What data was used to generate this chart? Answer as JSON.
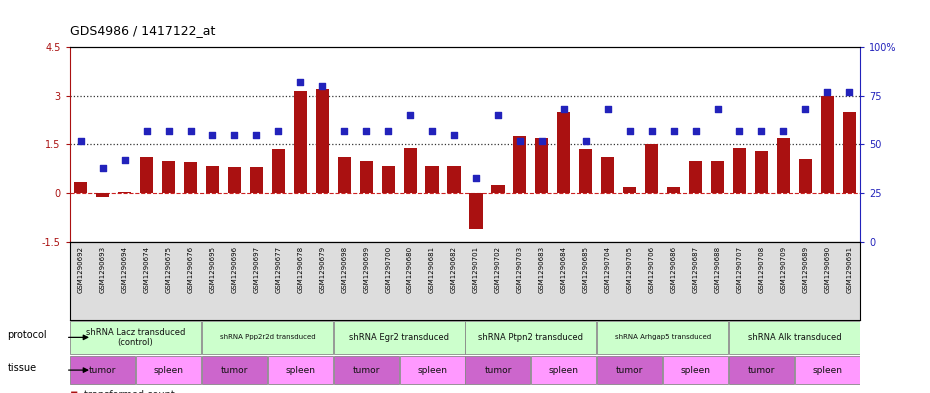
{
  "title": "GDS4986 / 1417122_at",
  "samples": [
    "GSM1290692",
    "GSM1290693",
    "GSM1290694",
    "GSM1290674",
    "GSM1290675",
    "GSM1290676",
    "GSM1290695",
    "GSM1290696",
    "GSM1290697",
    "GSM1290677",
    "GSM1290678",
    "GSM1290679",
    "GSM1290698",
    "GSM1290699",
    "GSM1290700",
    "GSM1290680",
    "GSM1290681",
    "GSM1290682",
    "GSM1290701",
    "GSM1290702",
    "GSM1290703",
    "GSM1290683",
    "GSM1290684",
    "GSM1290685",
    "GSM1290704",
    "GSM1290705",
    "GSM1290706",
    "GSM1290686",
    "GSM1290687",
    "GSM1290688",
    "GSM1290707",
    "GSM1290708",
    "GSM1290709",
    "GSM1290689",
    "GSM1290690",
    "GSM1290691"
  ],
  "bar_values": [
    0.35,
    -0.12,
    0.05,
    1.1,
    1.0,
    0.95,
    0.85,
    0.8,
    0.8,
    1.35,
    3.15,
    3.2,
    1.1,
    1.0,
    0.85,
    1.4,
    0.85,
    0.85,
    -1.1,
    0.25,
    1.75,
    1.7,
    2.5,
    1.35,
    1.1,
    0.2,
    1.5,
    0.2,
    1.0,
    1.0,
    1.4,
    1.3,
    1.7,
    1.05,
    3.0,
    2.5
  ],
  "scatter_pct": [
    52,
    38,
    42,
    57,
    57,
    57,
    55,
    55,
    55,
    57,
    82,
    80,
    57,
    57,
    57,
    65,
    57,
    55,
    33,
    65,
    52,
    52,
    68,
    52,
    68,
    57,
    57,
    57,
    57,
    68,
    57,
    57,
    57,
    68,
    77,
    77
  ],
  "protocols": [
    {
      "label": "shRNA Lacz transduced\n(control)",
      "start": 0,
      "end": 5,
      "color": "#ccffcc"
    },
    {
      "label": "shRNA Ppp2r2d transduced",
      "start": 6,
      "end": 11,
      "color": "#ccffcc"
    },
    {
      "label": "shRNA Egr2 transduced",
      "start": 12,
      "end": 17,
      "color": "#ccffcc"
    },
    {
      "label": "shRNA Ptpn2 transduced",
      "start": 18,
      "end": 23,
      "color": "#ccffcc"
    },
    {
      "label": "shRNA Arhgap5 transduced",
      "start": 24,
      "end": 29,
      "color": "#ccffcc"
    },
    {
      "label": "shRNA Alk transduced",
      "start": 30,
      "end": 35,
      "color": "#ccffcc"
    }
  ],
  "tissues": [
    {
      "label": "tumor",
      "start": 0,
      "end": 2,
      "color": "#cc66cc"
    },
    {
      "label": "spleen",
      "start": 3,
      "end": 5,
      "color": "#ff99ff"
    },
    {
      "label": "tumor",
      "start": 6,
      "end": 8,
      "color": "#cc66cc"
    },
    {
      "label": "spleen",
      "start": 9,
      "end": 11,
      "color": "#ff99ff"
    },
    {
      "label": "tumor",
      "start": 12,
      "end": 14,
      "color": "#cc66cc"
    },
    {
      "label": "spleen",
      "start": 15,
      "end": 17,
      "color": "#ff99ff"
    },
    {
      "label": "tumor",
      "start": 18,
      "end": 20,
      "color": "#cc66cc"
    },
    {
      "label": "spleen",
      "start": 21,
      "end": 23,
      "color": "#ff99ff"
    },
    {
      "label": "tumor",
      "start": 24,
      "end": 26,
      "color": "#cc66cc"
    },
    {
      "label": "spleen",
      "start": 27,
      "end": 29,
      "color": "#ff99ff"
    },
    {
      "label": "tumor",
      "start": 30,
      "end": 32,
      "color": "#cc66cc"
    },
    {
      "label": "spleen",
      "start": 33,
      "end": 35,
      "color": "#ff99ff"
    }
  ],
  "ylim_left": [
    -1.5,
    4.5
  ],
  "ylim_right": [
    0,
    100
  ],
  "yticks_left": [
    -1.5,
    0,
    1.5,
    3,
    4.5
  ],
  "yticks_left_labels": [
    "-1.5",
    "0",
    "1.5",
    "3",
    "4.5"
  ],
  "yticks_right": [
    0,
    25,
    50,
    75,
    100
  ],
  "yticks_right_labels": [
    "0",
    "25",
    "50",
    "75",
    "100%"
  ],
  "bar_color": "#aa1111",
  "scatter_color": "#2222bb",
  "hline_color": "#cc2222",
  "dotted_color": "#333333",
  "bg_color": "#ffffff",
  "label_bg_color": "#dddddd"
}
